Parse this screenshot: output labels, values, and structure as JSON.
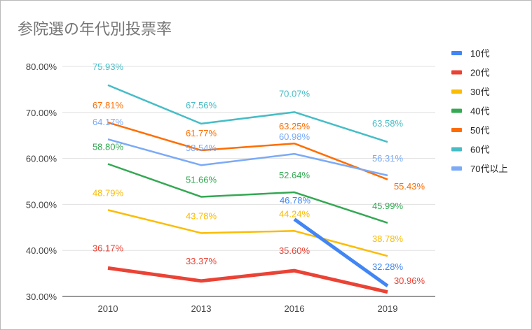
{
  "chart_data": {
    "type": "line",
    "title": "参院選の年代別投票率",
    "categories": [
      "2010",
      "2013",
      "2016",
      "2019"
    ],
    "ylim": [
      30,
      80
    ],
    "yticks": [
      "30.00%",
      "40.00%",
      "50.00%",
      "60.00%",
      "70.00%",
      "80.00%"
    ],
    "ytick_values": [
      30,
      40,
      50,
      60,
      70,
      80
    ],
    "grid": true,
    "legend_position": "right",
    "series": [
      {
        "name": "10代",
        "color": "#4285F4",
        "values": [
          null,
          null,
          46.78,
          32.28
        ],
        "labels": [
          "",
          "",
          "46.78%",
          "32.28%"
        ]
      },
      {
        "name": "20代",
        "color": "#EA4335",
        "values": [
          36.17,
          33.37,
          35.6,
          30.96
        ],
        "labels": [
          "36.17%",
          "33.37%",
          "35.60%",
          "30.96%"
        ]
      },
      {
        "name": "30代",
        "color": "#FBBC04",
        "values": [
          48.79,
          43.78,
          44.24,
          38.78
        ],
        "labels": [
          "48.79%",
          "43.78%",
          "44.24%",
          "38.78%"
        ]
      },
      {
        "name": "40代",
        "color": "#34A853",
        "values": [
          58.8,
          51.66,
          52.64,
          45.99
        ],
        "labels": [
          "58.80%",
          "51.66%",
          "52.64%",
          "45.99%"
        ]
      },
      {
        "name": "50代",
        "color": "#FF6D01",
        "values": [
          67.81,
          61.77,
          63.25,
          55.43
        ],
        "labels": [
          "67.81%",
          "61.77%",
          "63.25%",
          "55.43%"
        ]
      },
      {
        "name": "60代",
        "color": "#46BDC6",
        "values": [
          75.93,
          67.56,
          70.07,
          63.58
        ],
        "labels": [
          "75.93%",
          "67.56%",
          "70.07%",
          "63.58%"
        ]
      },
      {
        "name": "70代以上",
        "color": "#7BAAF7",
        "values": [
          64.17,
          58.54,
          60.98,
          56.31
        ],
        "labels": [
          "64.17%",
          "58.54%",
          "60.98%",
          "56.31%"
        ]
      }
    ]
  }
}
